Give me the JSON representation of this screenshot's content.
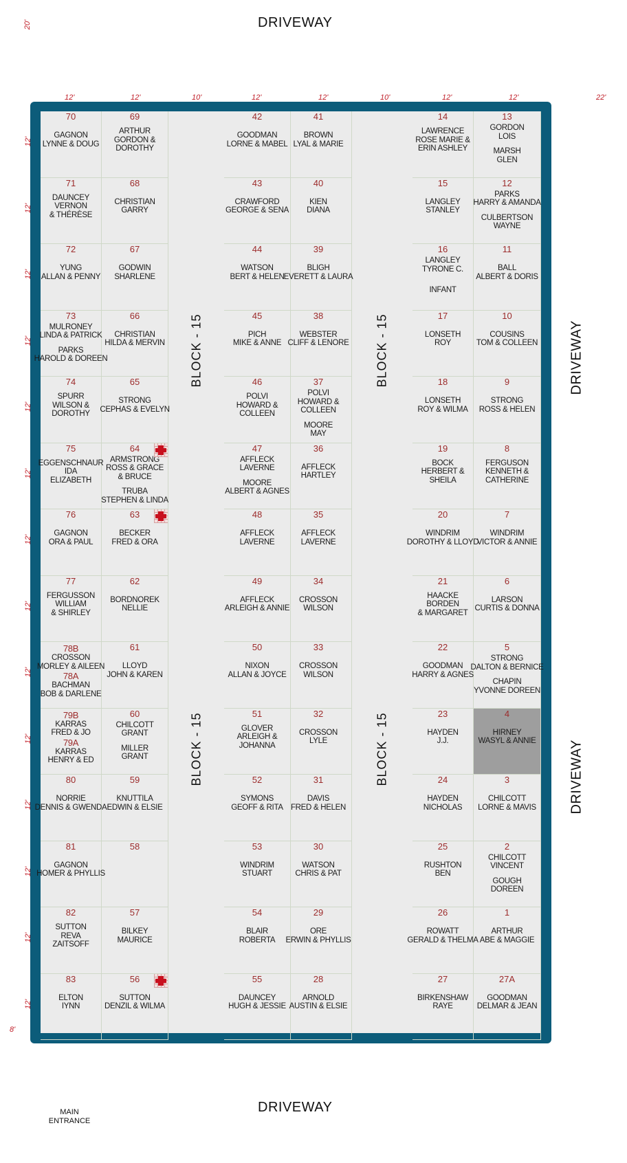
{
  "map": {
    "driveway_top": "DRIVEWAY",
    "driveway_bottom": "DRIVEWAY",
    "driveway_right_upper": "DRIVEWAY",
    "driveway_right_lower": "DRIVEWAY",
    "entrance_line1": "MAIN",
    "entrance_line2": "ENTRANCE",
    "block_label": "BLOCK - 15",
    "dims": {
      "top_left_corner": "20'",
      "col_12a": "12'",
      "col_12b": "12'",
      "aisle_10a": "10'",
      "col_12c": "12'",
      "col_12d": "12'",
      "aisle_10b": "10'",
      "col_12e": "12'",
      "col_12f": "12'",
      "right_22": "22'",
      "row": "12'",
      "bottom_8": "8'"
    },
    "colors": {
      "frame": "#0c5c7a",
      "plot_number": "#9c2b2b",
      "dimension": "#c0202a",
      "reserved": "#9e9e9e"
    },
    "columns": [
      [
        {
          "n": "70",
          "names": [
            "GAGNON",
            "LYNNE  &  DOUG"
          ]
        },
        {
          "n": "71",
          "names": [
            "DAUNCEY",
            "VERNON",
            "& THÉRÈSE"
          ]
        },
        {
          "n": "72",
          "names": [
            "YUNG",
            "ALLAN & PENNY"
          ]
        },
        {
          "n": "73",
          "names": [
            "MULRONEY",
            "LINDA & PATRICK",
            "",
            "PARKS",
            "HAROLD & DOREEN"
          ]
        },
        {
          "n": "74",
          "names": [
            "SPURR",
            "WILSON &",
            "DOROTHY"
          ]
        },
        {
          "n": "75",
          "names": [
            "EGGENSCHNAUR",
            "IDA",
            "ELIZABETH"
          ]
        },
        {
          "n": "76",
          "names": [
            "GAGNON",
            "ORA & PAUL"
          ]
        },
        {
          "n": "77",
          "names": [
            "FERGUSSON",
            "WILLIAM",
            "& SHIRLEY"
          ]
        },
        {
          "n": "78B",
          "names": [
            "CROSSON",
            "MORLEY & AILEEN"
          ],
          "n2": "78A",
          "names2": [
            "BACHMAN",
            "BOB & DARLENE"
          ]
        },
        {
          "n": "79B",
          "names": [
            "KARRAS",
            "FRED & JO"
          ],
          "n2": "79A",
          "names2": [
            "KARRAS",
            "HENRY & ED"
          ]
        },
        {
          "n": "80",
          "names": [
            "NORRIE",
            "DENNIS & GWENDA"
          ]
        },
        {
          "n": "81",
          "names": [
            "GAGNON",
            "HOMER & PHYLLIS"
          ]
        },
        {
          "n": "82",
          "names": [
            "SUTTON",
            "REVA",
            "ZAITSOFF"
          ]
        },
        {
          "n": "83",
          "names": [
            "ELTON",
            "IYNN"
          ]
        }
      ],
      [
        {
          "n": "69",
          "names": [
            "ARTHUR",
            "GORDON &",
            "DOROTHY"
          ]
        },
        {
          "n": "68",
          "names": [
            "CHRISTIAN",
            "GARRY"
          ]
        },
        {
          "n": "67",
          "names": [
            "GODWIN",
            "SHARLENE"
          ]
        },
        {
          "n": "66",
          "names": [
            "CHRISTIAN",
            "HILDA & MERVIN"
          ]
        },
        {
          "n": "65",
          "names": [
            "STRONG",
            "CEPHAS & EVELYN"
          ]
        },
        {
          "n": "64",
          "names": [
            "ARMSTRONG",
            "ROSS & GRACE",
            "& BRUCE",
            "",
            "TRUBA",
            "STEPHEN & LINDA"
          ],
          "marker": true
        },
        {
          "n": "63",
          "names": [
            "BECKER",
            "FRED & ORA"
          ],
          "marker": true
        },
        {
          "n": "62",
          "names": [
            "BORDNOREK",
            "NELLIE"
          ]
        },
        {
          "n": "61",
          "names": [
            "LLOYD",
            "JOHN & KAREN"
          ]
        },
        {
          "n": "60",
          "names": [
            "CHILCOTT",
            "GRANT",
            "",
            "MILLER",
            "GRANT"
          ]
        },
        {
          "n": "59",
          "names": [
            "KNUTTILA",
            "EDWIN & ELSIE"
          ]
        },
        {
          "n": "58",
          "names": []
        },
        {
          "n": "57",
          "names": [
            "BILKEY",
            "MAURICE"
          ]
        },
        {
          "n": "56",
          "names": [
            "SUTTON",
            "DENZIL & WILMA"
          ],
          "marker": true
        }
      ],
      [
        {
          "n": "42",
          "names": [
            "GOODMAN",
            "LORNE & MABEL"
          ]
        },
        {
          "n": "43",
          "names": [
            "CRAWFORD",
            "GEORGE & SENA"
          ]
        },
        {
          "n": "44",
          "names": [
            "WATSON",
            "BERT & HELEN"
          ]
        },
        {
          "n": "45",
          "names": [
            "PICH",
            "MIKE & ANNE"
          ]
        },
        {
          "n": "46",
          "names": [
            "POLVI",
            "HOWARD &",
            "COLLEEN"
          ]
        },
        {
          "n": "47",
          "names": [
            "AFFLECK",
            "LAVERNE",
            "",
            "MOORE",
            "ALBERT & AGNES"
          ]
        },
        {
          "n": "48",
          "names": [
            "AFFLECK",
            "LAVERNE"
          ]
        },
        {
          "n": "49",
          "names": [
            "AFFLECK",
            "ARLEIGH & ANNIE"
          ]
        },
        {
          "n": "50",
          "names": [
            "NIXON",
            "ALLAN & JOYCE"
          ]
        },
        {
          "n": "51",
          "names": [
            "GLOVER",
            "ARLEIGH &",
            "JOHANNA"
          ]
        },
        {
          "n": "52",
          "names": [
            "SYMONS",
            "GEOFF & RITA"
          ]
        },
        {
          "n": "53",
          "names": [
            "WINDRIM",
            "STUART"
          ]
        },
        {
          "n": "54",
          "names": [
            "BLAIR",
            "ROBERTA"
          ]
        },
        {
          "n": "55",
          "names": [
            "DAUNCEY",
            "HUGH & JESSIE"
          ]
        }
      ],
      [
        {
          "n": "41",
          "names": [
            "BROWN",
            "LYAL & MARIE"
          ]
        },
        {
          "n": "40",
          "names": [
            "KIEN",
            "DIANA"
          ]
        },
        {
          "n": "39",
          "names": [
            "BLIGH",
            "EVERETT & LAURA"
          ]
        },
        {
          "n": "38",
          "names": [
            "WEBSTER",
            "CLIFF & LENORE"
          ]
        },
        {
          "n": "37",
          "names": [
            "POLVI",
            "HOWARD &",
            "COLLEEN",
            "",
            "MOORE",
            "MAY"
          ]
        },
        {
          "n": "36",
          "names": [
            "AFFLECK",
            "HARTLEY"
          ]
        },
        {
          "n": "35",
          "names": [
            "AFFLECK",
            "LAVERNE"
          ]
        },
        {
          "n": "34",
          "names": [
            "CROSSON",
            "WILSON"
          ]
        },
        {
          "n": "33",
          "names": [
            "CROSSON",
            "WILSON"
          ]
        },
        {
          "n": "32",
          "names": [
            "CROSSON",
            "LYLE"
          ]
        },
        {
          "n": "31",
          "names": [
            "DAVIS",
            "FRED & HELEN"
          ]
        },
        {
          "n": "30",
          "names": [
            "WATSON",
            "CHRIS & PAT"
          ]
        },
        {
          "n": "29",
          "names": [
            "ORE",
            "ERWIN & PHYLLIS"
          ]
        },
        {
          "n": "28",
          "names": [
            "ARNOLD",
            "AUSTIN & ELSIE"
          ]
        }
      ],
      [
        {
          "n": "14",
          "names": [
            "LAWRENCE",
            "ROSE MARIE &",
            "ERIN ASHLEY"
          ]
        },
        {
          "n": "15",
          "names": [
            "LANGLEY",
            "STANLEY"
          ]
        },
        {
          "n": "16",
          "names": [
            "LANGLEY",
            "TYRONE C.",
            "",
            "",
            "INFANT"
          ]
        },
        {
          "n": "17",
          "names": [
            "LONSETH",
            "ROY"
          ]
        },
        {
          "n": "18",
          "names": [
            "LONSETH",
            "ROY & WILMA"
          ]
        },
        {
          "n": "19",
          "names": [
            "BOCK",
            "HERBERT &",
            "SHEILA"
          ]
        },
        {
          "n": "20",
          "names": [
            "WINDRIM",
            "DOROTHY & LLOYD"
          ]
        },
        {
          "n": "21",
          "names": [
            "HAACKE",
            "BORDEN",
            "& MARGARET"
          ]
        },
        {
          "n": "22",
          "names": [
            "GOODMAN",
            "HARRY & AGNES"
          ]
        },
        {
          "n": "23",
          "names": [
            "HAYDEN",
            "J.J."
          ]
        },
        {
          "n": "24",
          "names": [
            "HAYDEN",
            "NICHOLAS"
          ]
        },
        {
          "n": "25",
          "names": [
            "RUSHTON",
            "BEN"
          ]
        },
        {
          "n": "26",
          "names": [
            "ROWATT",
            "GERALD & THELMA"
          ]
        },
        {
          "n": "27",
          "names": [
            "BIRKENSHAW",
            "RAYE"
          ]
        }
      ],
      [
        {
          "n": "13",
          "names": [
            "GORDON",
            "LOIS",
            "",
            "MARSH",
            "GLEN"
          ]
        },
        {
          "n": "12",
          "names": [
            "PARKS",
            "HARRY & AMANDA",
            "",
            "CULBERTSON",
            "WAYNE"
          ]
        },
        {
          "n": "11",
          "names": [
            "BALL",
            "ALBERT & DORIS"
          ]
        },
        {
          "n": "10",
          "names": [
            "COUSINS",
            "TOM & COLLEEN"
          ]
        },
        {
          "n": "9",
          "names": [
            "STRONG",
            "ROSS & HELEN"
          ]
        },
        {
          "n": "8",
          "names": [
            "FERGUSON",
            "KENNETH &",
            "CATHERINE"
          ]
        },
        {
          "n": "7",
          "names": [
            "WINDRIM",
            "VICTOR & ANNIE"
          ]
        },
        {
          "n": "6",
          "names": [
            "LARSON",
            "CURTIS & DONNA"
          ]
        },
        {
          "n": "5",
          "names": [
            "STRONG",
            "DALTON & BERNICE",
            "",
            "CHAPIN",
            "YVONNE DOREEN"
          ]
        },
        {
          "n": "4",
          "names": [
            "HIRNEY",
            "WASYL & ANNIE"
          ],
          "shaded": true
        },
        {
          "n": "3",
          "names": [
            "CHILCOTT",
            "LORNE & MAVIS"
          ]
        },
        {
          "n": "2",
          "names": [
            "CHILCOTT",
            "VINCENT",
            "",
            "GOUGH",
            "DOREEN"
          ]
        },
        {
          "n": "1",
          "names": [
            "ARTHUR",
            "ABE & MAGGIE"
          ]
        },
        {
          "n": "27A",
          "names": [
            "GOODMAN",
            "DELMAR & JEAN"
          ]
        }
      ]
    ]
  }
}
